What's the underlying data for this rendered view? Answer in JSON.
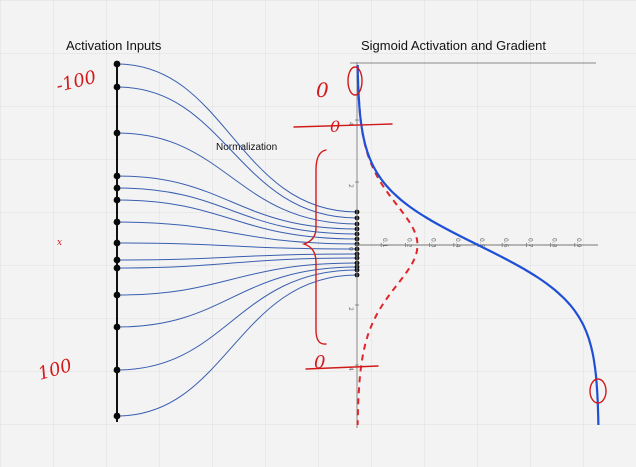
{
  "diagram": {
    "left_title": "Activation Inputs",
    "right_title": "Sigmoid Activation and Gradient",
    "middle_label": "Normalization",
    "axis_x_ticks": [
      "0.1",
      "0.2",
      "0.3",
      "0.4",
      "0.5",
      "0.6",
      "0.7",
      "0.8",
      "0.9"
    ],
    "axis_y_ticks": [
      "4",
      "2",
      "0",
      "2",
      "4"
    ],
    "handwritten": {
      "top_left": "-100",
      "bottom_left": "100",
      "zero_top": "0",
      "zero_second": "0",
      "zero_bottom": "0",
      "mark_left": "x"
    },
    "colors": {
      "lines": "#3a5fb0",
      "sigmoid": "#1e4fd6",
      "gradient": "#e0262a",
      "ink": "#d21a1a",
      "dots": "#0a0a0a"
    }
  }
}
